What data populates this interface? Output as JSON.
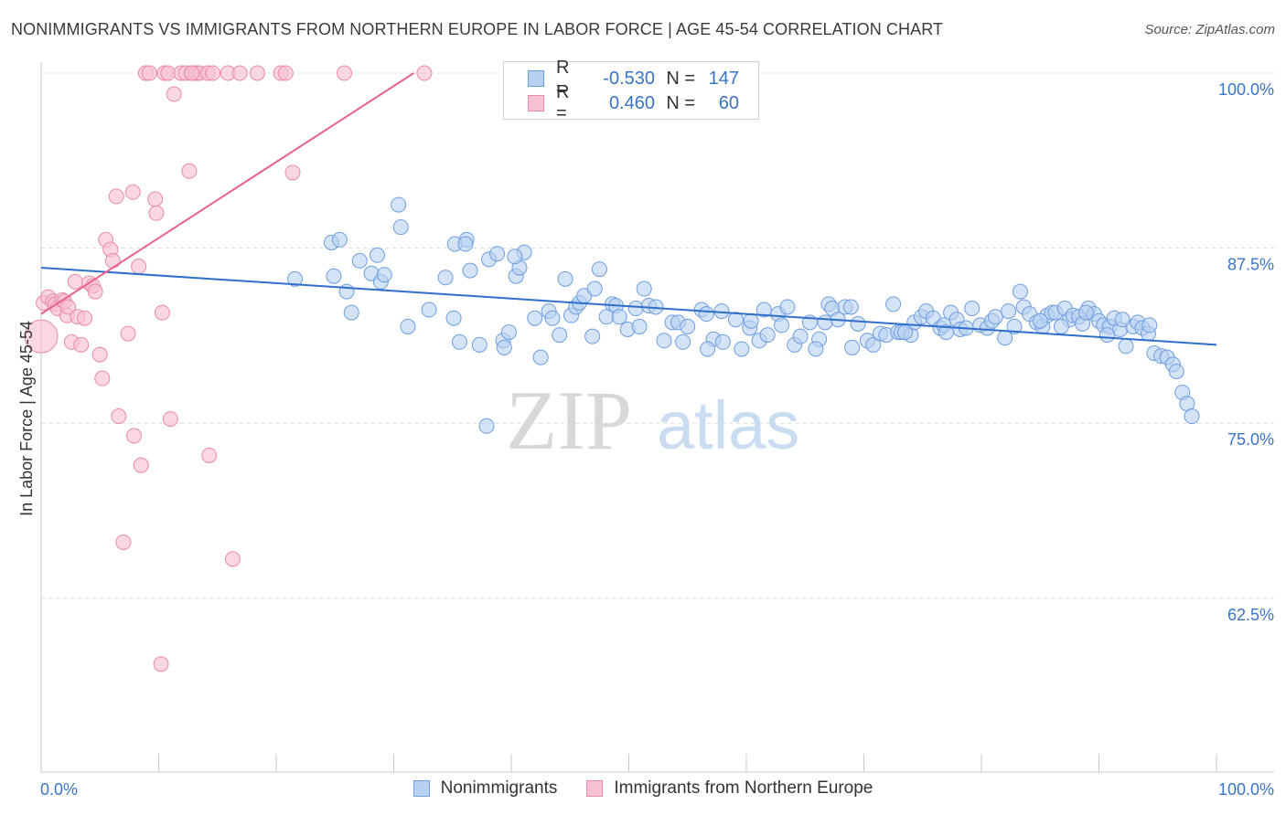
{
  "header": {
    "title": "NONIMMIGRANTS VS IMMIGRANTS FROM NORTHERN EUROPE IN LABOR FORCE | AGE 45-54 CORRELATION CHART",
    "source": "Source: ZipAtlas.com"
  },
  "legend_top": {
    "rows": [
      {
        "r_label": "R =",
        "r_value": "-0.530",
        "n_label": "N =",
        "n_value": "147"
      },
      {
        "r_label": "R =",
        "r_value": "0.460",
        "n_label": "N =",
        "n_value": "60"
      }
    ]
  },
  "legend_bottom": {
    "items": [
      {
        "label": "Nonimmigrants"
      },
      {
        "label": "Immigrants from Northern Europe"
      }
    ]
  },
  "watermark": {
    "zip": "ZIP",
    "atlas": "atlas"
  },
  "colors": {
    "blue_fill": "#b8d1f0",
    "blue_stroke": "#6d9ee0",
    "blue_line": "#2f6fcb",
    "pink_fill": "#f7c2d2",
    "pink_stroke": "#ea8aa8",
    "pink_line": "#e8628e",
    "tick_label": "#3a74c6",
    "grid": "#dddddd"
  },
  "chart_data": {
    "type": "scatter",
    "title": "NONIMMIGRANTS VS IMMIGRANTS FROM NORTHERN EUROPE IN LABOR FORCE | AGE 45-54 CORRELATION CHART",
    "xlabel": "",
    "ylabel": "In Labor Force | Age 45-54",
    "xlim": [
      0,
      100
    ],
    "ylim": [
      50,
      100.9
    ],
    "y_ticks": [
      62.5,
      75.0,
      87.5,
      100.0
    ],
    "y_tick_labels": [
      "62.5%",
      "75.0%",
      "87.5%",
      "100.0%"
    ],
    "x_tick_labels": [
      "0.0%",
      "100.0%"
    ],
    "grid": true,
    "legend": "top-center",
    "series": [
      {
        "name": "Nonimmigrants",
        "R": -0.53,
        "N": 147,
        "trend": {
          "x": [
            0,
            100
          ],
          "y": [
            86.1,
            80.6
          ]
        },
        "points": [
          [
            21.6,
            85.3
          ],
          [
            24.7,
            87.9
          ],
          [
            25.4,
            88.1
          ],
          [
            24.9,
            85.5
          ],
          [
            26.0,
            84.4
          ],
          [
            26.4,
            82.9
          ],
          [
            27.1,
            86.6
          ],
          [
            28.1,
            85.7
          ],
          [
            28.9,
            85.1
          ],
          [
            28.6,
            87.0
          ],
          [
            29.2,
            85.6
          ],
          [
            30.4,
            90.6
          ],
          [
            30.6,
            89.0
          ],
          [
            31.2,
            81.9
          ],
          [
            33.0,
            83.1
          ],
          [
            34.4,
            85.4
          ],
          [
            35.1,
            82.5
          ],
          [
            35.2,
            87.8
          ],
          [
            35.6,
            80.8
          ],
          [
            36.2,
            88.1
          ],
          [
            36.5,
            85.9
          ],
          [
            37.3,
            80.6
          ],
          [
            37.9,
            74.8
          ],
          [
            38.1,
            86.7
          ],
          [
            38.8,
            87.1
          ],
          [
            39.3,
            80.9
          ],
          [
            39.4,
            80.4
          ],
          [
            39.8,
            81.5
          ],
          [
            40.4,
            85.5
          ],
          [
            40.7,
            86.1
          ],
          [
            41.1,
            87.2
          ],
          [
            42.0,
            82.5
          ],
          [
            42.5,
            79.7
          ],
          [
            43.2,
            83.0
          ],
          [
            43.5,
            82.5
          ],
          [
            44.1,
            81.3
          ],
          [
            44.6,
            85.3
          ],
          [
            45.1,
            82.7
          ],
          [
            45.5,
            83.3
          ],
          [
            45.8,
            83.6
          ],
          [
            46.2,
            84.1
          ],
          [
            46.9,
            81.2
          ],
          [
            47.1,
            84.6
          ],
          [
            47.5,
            86.0
          ],
          [
            48.1,
            82.6
          ],
          [
            48.6,
            83.5
          ],
          [
            48.9,
            83.4
          ],
          [
            49.2,
            82.6
          ],
          [
            49.9,
            81.7
          ],
          [
            50.6,
            83.2
          ],
          [
            50.9,
            81.9
          ],
          [
            51.3,
            84.6
          ],
          [
            51.7,
            83.4
          ],
          [
            52.3,
            83.3
          ],
          [
            53.0,
            80.9
          ],
          [
            53.7,
            82.2
          ],
          [
            54.2,
            82.2
          ],
          [
            54.6,
            80.8
          ],
          [
            55.0,
            81.9
          ],
          [
            56.2,
            83.1
          ],
          [
            56.6,
            82.8
          ],
          [
            57.2,
            81.0
          ],
          [
            58.0,
            80.8
          ],
          [
            59.1,
            82.4
          ],
          [
            59.6,
            80.3
          ],
          [
            60.3,
            81.8
          ],
          [
            61.1,
            80.9
          ],
          [
            61.5,
            83.1
          ],
          [
            61.8,
            81.3
          ],
          [
            62.7,
            82.8
          ],
          [
            63.0,
            82.0
          ],
          [
            64.1,
            80.6
          ],
          [
            64.6,
            81.2
          ],
          [
            65.4,
            82.2
          ],
          [
            66.2,
            81.0
          ],
          [
            66.7,
            82.2
          ],
          [
            67.0,
            83.5
          ],
          [
            67.3,
            83.2
          ],
          [
            67.8,
            82.4
          ],
          [
            68.4,
            83.3
          ],
          [
            69.0,
            80.4
          ],
          [
            69.5,
            82.1
          ],
          [
            70.3,
            80.9
          ],
          [
            70.8,
            80.6
          ],
          [
            71.4,
            81.4
          ],
          [
            71.9,
            81.3
          ],
          [
            72.5,
            83.5
          ],
          [
            72.9,
            81.5
          ],
          [
            73.2,
            81.5
          ],
          [
            74.0,
            81.3
          ],
          [
            74.3,
            82.2
          ],
          [
            74.9,
            82.6
          ],
          [
            75.3,
            83.0
          ],
          [
            75.9,
            82.5
          ],
          [
            76.5,
            81.8
          ],
          [
            76.8,
            82.0
          ],
          [
            77.4,
            82.9
          ],
          [
            77.9,
            82.4
          ],
          [
            78.2,
            81.7
          ],
          [
            78.7,
            81.8
          ],
          [
            79.2,
            83.2
          ],
          [
            79.9,
            82.0
          ],
          [
            80.5,
            81.8
          ],
          [
            80.9,
            82.3
          ],
          [
            81.2,
            82.6
          ],
          [
            82.0,
            81.1
          ],
          [
            82.3,
            83.0
          ],
          [
            82.8,
            81.9
          ],
          [
            83.3,
            84.4
          ],
          [
            83.6,
            83.3
          ],
          [
            84.1,
            82.8
          ],
          [
            84.7,
            82.2
          ],
          [
            85.2,
            81.9
          ],
          [
            85.6,
            82.7
          ],
          [
            86.0,
            82.9
          ],
          [
            86.3,
            82.9
          ],
          [
            87.1,
            83.2
          ],
          [
            87.5,
            82.4
          ],
          [
            87.8,
            82.7
          ],
          [
            88.3,
            82.6
          ],
          [
            88.6,
            82.1
          ],
          [
            89.1,
            83.2
          ],
          [
            89.6,
            82.8
          ],
          [
            90.0,
            82.3
          ],
          [
            90.4,
            82.0
          ],
          [
            90.9,
            81.9
          ],
          [
            91.3,
            82.5
          ],
          [
            91.8,
            81.7
          ],
          [
            92.3,
            80.5
          ],
          [
            92.9,
            81.9
          ],
          [
            93.3,
            82.2
          ],
          [
            93.7,
            81.8
          ],
          [
            94.2,
            81.4
          ],
          [
            94.7,
            80.0
          ],
          [
            95.3,
            79.8
          ],
          [
            95.8,
            79.7
          ],
          [
            96.3,
            79.2
          ],
          [
            96.6,
            78.7
          ],
          [
            97.1,
            77.2
          ],
          [
            97.5,
            76.4
          ],
          [
            97.9,
            75.5
          ],
          [
            36.1,
            87.8
          ],
          [
            40.3,
            86.9
          ],
          [
            56.7,
            80.3
          ],
          [
            57.9,
            83.0
          ],
          [
            60.4,
            82.3
          ],
          [
            63.5,
            83.3
          ],
          [
            65.9,
            80.3
          ],
          [
            68.9,
            83.3
          ],
          [
            73.5,
            81.5
          ],
          [
            77.0,
            81.5
          ],
          [
            85.0,
            82.3
          ],
          [
            86.8,
            81.9
          ],
          [
            88.9,
            82.9
          ],
          [
            92.0,
            82.4
          ],
          [
            94.3,
            82.0
          ],
          [
            90.7,
            81.3
          ]
        ]
      },
      {
        "name": "Immigrants from Northern Europe",
        "R": 0.46,
        "N": 60,
        "trend": {
          "x": [
            0,
            31.7
          ],
          "y": [
            82.8,
            100.0
          ]
        },
        "points": [
          [
            0.0,
            81.2,
            "large"
          ],
          [
            0.2,
            83.6
          ],
          [
            0.6,
            84.0
          ],
          [
            1.0,
            83.7
          ],
          [
            1.2,
            83.5
          ],
          [
            1.4,
            83.2
          ],
          [
            1.8,
            83.8
          ],
          [
            2.0,
            83.7
          ],
          [
            2.2,
            82.7
          ],
          [
            2.3,
            83.3
          ],
          [
            2.6,
            80.8
          ],
          [
            2.9,
            85.1
          ],
          [
            3.1,
            82.6
          ],
          [
            3.4,
            80.6
          ],
          [
            3.7,
            82.5
          ],
          [
            4.1,
            85.0
          ],
          [
            4.4,
            84.8
          ],
          [
            4.6,
            84.4
          ],
          [
            5.0,
            79.9
          ],
          [
            5.2,
            78.2
          ],
          [
            5.5,
            88.1
          ],
          [
            5.9,
            87.4
          ],
          [
            6.1,
            86.6
          ],
          [
            6.4,
            91.2
          ],
          [
            6.6,
            75.5
          ],
          [
            7.0,
            66.5
          ],
          [
            7.4,
            81.4
          ],
          [
            7.8,
            91.5
          ],
          [
            7.9,
            74.1
          ],
          [
            8.3,
            86.2
          ],
          [
            8.5,
            72.0
          ],
          [
            8.9,
            100.0
          ],
          [
            9.2,
            100.0
          ],
          [
            9.7,
            91.0
          ],
          [
            9.8,
            90.0
          ],
          [
            10.2,
            57.8
          ],
          [
            10.3,
            82.9
          ],
          [
            10.5,
            100.0
          ],
          [
            10.8,
            100.0
          ],
          [
            11.0,
            75.3
          ],
          [
            11.3,
            98.5
          ],
          [
            11.9,
            100.0
          ],
          [
            12.3,
            100.0
          ],
          [
            12.6,
            93.0
          ],
          [
            12.9,
            100.0
          ],
          [
            13.2,
            100.0
          ],
          [
            13.5,
            100.0
          ],
          [
            14.2,
            100.0
          ],
          [
            14.3,
            72.7
          ],
          [
            14.6,
            100.0
          ],
          [
            15.9,
            100.0
          ],
          [
            16.3,
            65.3
          ],
          [
            16.9,
            100.0
          ],
          [
            18.4,
            100.0
          ],
          [
            20.4,
            100.0
          ],
          [
            20.8,
            100.0
          ],
          [
            21.4,
            92.9
          ],
          [
            25.8,
            100.0
          ],
          [
            32.6,
            100.0
          ],
          [
            12.8,
            100.0
          ]
        ]
      }
    ]
  }
}
